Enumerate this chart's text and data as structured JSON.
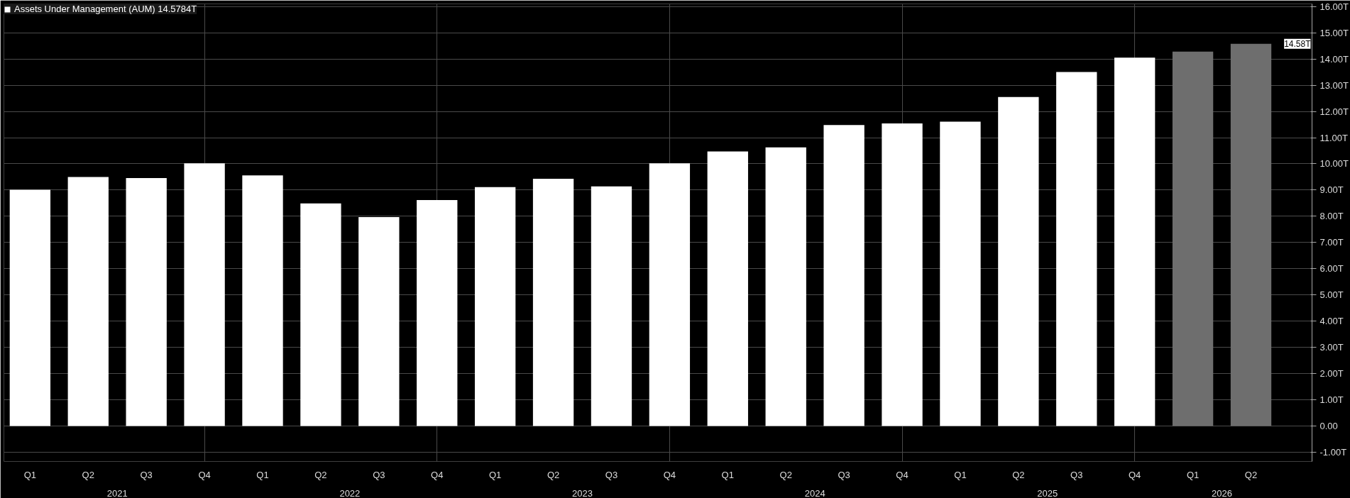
{
  "chart_data": {
    "type": "bar",
    "categories": [
      "Q1",
      "Q2",
      "Q3",
      "Q4",
      "Q1",
      "Q2",
      "Q3",
      "Q4",
      "Q1",
      "Q2",
      "Q3",
      "Q4",
      "Q1",
      "Q2",
      "Q3",
      "Q4",
      "Q1",
      "Q2",
      "Q3",
      "Q4",
      "Q1",
      "Q2"
    ],
    "series": [
      {
        "name": "Assets Under Management (AUM) 14.5784T",
        "colors": [
          "#ffffff",
          "#ffffff",
          "#ffffff",
          "#ffffff",
          "#ffffff",
          "#ffffff",
          "#ffffff",
          "#ffffff",
          "#ffffff",
          "#ffffff",
          "#ffffff",
          "#ffffff",
          "#ffffff",
          "#ffffff",
          "#ffffff",
          "#ffffff",
          "#ffffff",
          "#ffffff",
          "#ffffff",
          "#ffffff",
          "#6e6e6e",
          "#6e6e6e"
        ],
        "values": [
          9.01,
          9.5,
          9.46,
          10.02,
          9.56,
          8.49,
          7.97,
          8.62,
          9.11,
          9.43,
          9.14,
          10.02,
          10.47,
          10.63,
          11.48,
          11.54,
          11.61,
          12.55,
          13.5,
          14.05,
          14.28,
          14.5784
        ]
      }
    ],
    "annotations": [
      "2021",
      "2022",
      "2023",
      "2024",
      "2025",
      "2026",
      {
        "text": "14.58T",
        "y": 14.5784
      }
    ],
    "ylim": [
      -1.35,
      16.1
    ],
    "yticks": [
      {
        "value": -1,
        "label": "-1.00T"
      },
      {
        "value": 0,
        "label": "0.00"
      },
      {
        "value": 1,
        "label": "1.00T"
      },
      {
        "value": 2,
        "label": "2.00T"
      },
      {
        "value": 3,
        "label": "3.00T"
      },
      {
        "value": 4,
        "label": "4.00T"
      },
      {
        "value": 5,
        "label": "5.00T"
      },
      {
        "value": 6,
        "label": "6.00T"
      },
      {
        "value": 7,
        "label": "7.00T"
      },
      {
        "value": 8,
        "label": "8.00T"
      },
      {
        "value": 9,
        "label": "9.00T"
      },
      {
        "value": 10,
        "label": "10.00T"
      },
      {
        "value": 11,
        "label": "11.00T"
      },
      {
        "value": 12,
        "label": "12.00T"
      },
      {
        "value": 13,
        "label": "13.00T"
      },
      {
        "value": 14,
        "label": "14.00T"
      },
      {
        "value": 15,
        "label": "15.00T"
      },
      {
        "value": 16,
        "label": "16.00T"
      }
    ],
    "grid": true,
    "legend": "top left"
  }
}
